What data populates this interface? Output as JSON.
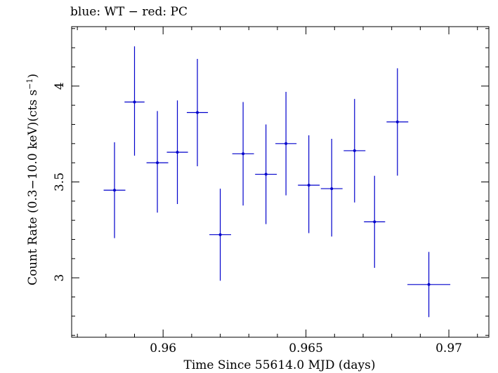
{
  "chart_data": {
    "type": "scatter",
    "title": "blue: WT − red: PC",
    "xlabel": "Time Since 55614.0 MJD (days)",
    "ylabel_main": "Count Rate (0.3−10.0 keV)(cts s",
    "ylabel_sup": "−1",
    "ylabel_close": ")",
    "xlim": [
      0.9568,
      0.9714
    ],
    "ylim": [
      2.69,
      4.31
    ],
    "xticks": [
      {
        "value": 0.96,
        "label": "0.96"
      },
      {
        "value": 0.965,
        "label": "0.965"
      },
      {
        "value": 0.97,
        "label": "0.97"
      }
    ],
    "yticks": [
      {
        "value": 3.0,
        "label": "3"
      },
      {
        "value": 3.5,
        "label": "3.5"
      },
      {
        "value": 4.0,
        "label": "4"
      }
    ],
    "series": [
      {
        "color": "#0000cc",
        "points": [
          {
            "x": 0.9583,
            "xerr": 0.00038,
            "y": 3.457,
            "yerr_lo": 0.25,
            "yerr_hi": 0.25
          },
          {
            "x": 0.959,
            "xerr": 0.00035,
            "y": 3.917,
            "yerr_lo": 0.28,
            "yerr_hi": 0.29
          },
          {
            "x": 0.9598,
            "xerr": 0.00038,
            "y": 3.6,
            "yerr_lo": 0.26,
            "yerr_hi": 0.27
          },
          {
            "x": 0.9605,
            "xerr": 0.00037,
            "y": 3.655,
            "yerr_lo": 0.27,
            "yerr_hi": 0.27
          },
          {
            "x": 0.9612,
            "xerr": 0.00037,
            "y": 3.862,
            "yerr_lo": 0.28,
            "yerr_hi": 0.28
          },
          {
            "x": 0.962,
            "xerr": 0.00038,
            "y": 3.225,
            "yerr_lo": 0.24,
            "yerr_hi": 0.24
          },
          {
            "x": 0.9628,
            "xerr": 0.00038,
            "y": 3.647,
            "yerr_lo": 0.27,
            "yerr_hi": 0.27
          },
          {
            "x": 0.9636,
            "xerr": 0.00038,
            "y": 3.54,
            "yerr_lo": 0.26,
            "yerr_hi": 0.26
          },
          {
            "x": 0.9643,
            "xerr": 0.00037,
            "y": 3.7,
            "yerr_lo": 0.27,
            "yerr_hi": 0.27
          },
          {
            "x": 0.9651,
            "xerr": 0.00038,
            "y": 3.483,
            "yerr_lo": 0.25,
            "yerr_hi": 0.26
          },
          {
            "x": 0.9659,
            "xerr": 0.00038,
            "y": 3.465,
            "yerr_lo": 0.25,
            "yerr_hi": 0.26
          },
          {
            "x": 0.9667,
            "xerr": 0.00038,
            "y": 3.663,
            "yerr_lo": 0.27,
            "yerr_hi": 0.27
          },
          {
            "x": 0.9674,
            "xerr": 0.00037,
            "y": 3.292,
            "yerr_lo": 0.24,
            "yerr_hi": 0.24
          },
          {
            "x": 0.9682,
            "xerr": 0.00038,
            "y": 3.813,
            "yerr_lo": 0.28,
            "yerr_hi": 0.28
          },
          {
            "x": 0.9693,
            "xerr": 0.00075,
            "y": 2.965,
            "yerr_lo": 0.17,
            "yerr_hi": 0.17
          }
        ]
      }
    ],
    "grid": false,
    "legend": "none"
  }
}
